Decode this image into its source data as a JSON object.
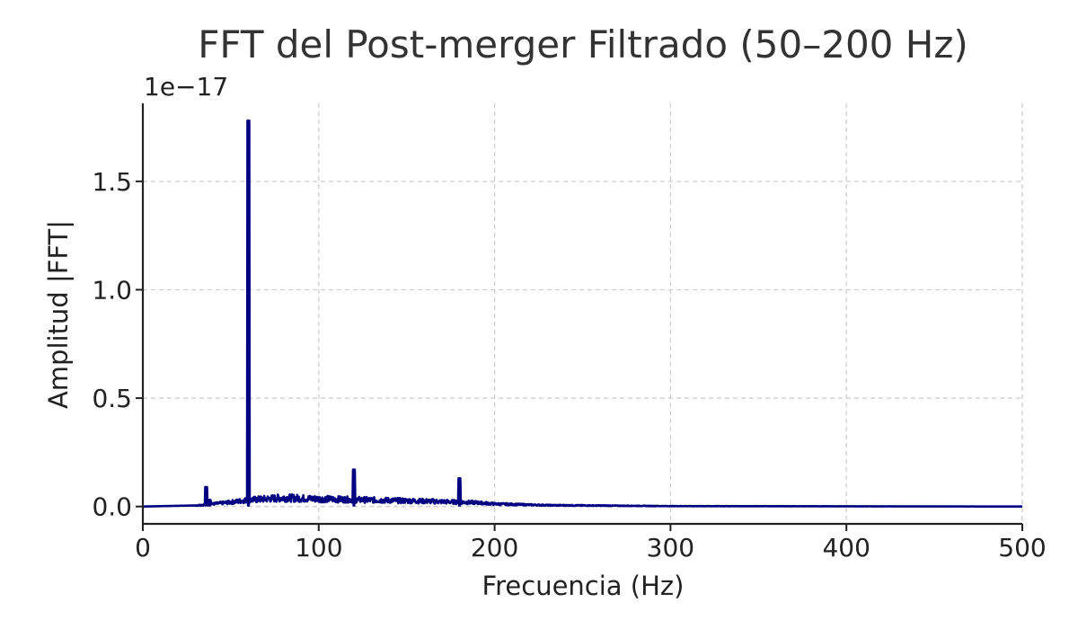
{
  "chart_data": {
    "type": "line",
    "title": "FFT del Post-merger Filtrado (50–200 Hz)",
    "xlabel": "Frecuencia (Hz)",
    "ylabel": "Amplitud |FFT|",
    "y_offset_text": "1e−17",
    "xlim": [
      0,
      500
    ],
    "ylim": [
      -0.08,
      1.86
    ],
    "y_scale_factor": 1e-17,
    "x_ticks": [
      0,
      100,
      200,
      300,
      400,
      500
    ],
    "x_tick_labels": [
      "0",
      "100",
      "200",
      "300",
      "400",
      "500"
    ],
    "y_ticks": [
      0.0,
      0.5,
      1.0,
      1.5
    ],
    "y_tick_labels": [
      "0.0",
      "0.5",
      "1.0",
      "1.5"
    ],
    "grid": true,
    "line_color": "#000080",
    "series": [
      {
        "peaks": [
          {
            "x": 36,
            "y": 0.09
          },
          {
            "x": 38,
            "y": 0.03
          },
          {
            "x": 60,
            "y": 1.78
          },
          {
            "x": 120,
            "y": 0.17
          },
          {
            "x": 180,
            "y": 0.13
          }
        ],
        "envelope": [
          {
            "x": 0,
            "y": 0.0
          },
          {
            "x": 30,
            "y": 0.005
          },
          {
            "x": 40,
            "y": 0.012
          },
          {
            "x": 50,
            "y": 0.02
          },
          {
            "x": 60,
            "y": 0.03
          },
          {
            "x": 80,
            "y": 0.04
          },
          {
            "x": 100,
            "y": 0.035
          },
          {
            "x": 130,
            "y": 0.03
          },
          {
            "x": 160,
            "y": 0.025
          },
          {
            "x": 190,
            "y": 0.018
          },
          {
            "x": 200,
            "y": 0.012
          },
          {
            "x": 230,
            "y": 0.006
          },
          {
            "x": 300,
            "y": 0.002
          },
          {
            "x": 500,
            "y": 0.0
          }
        ]
      }
    ]
  }
}
